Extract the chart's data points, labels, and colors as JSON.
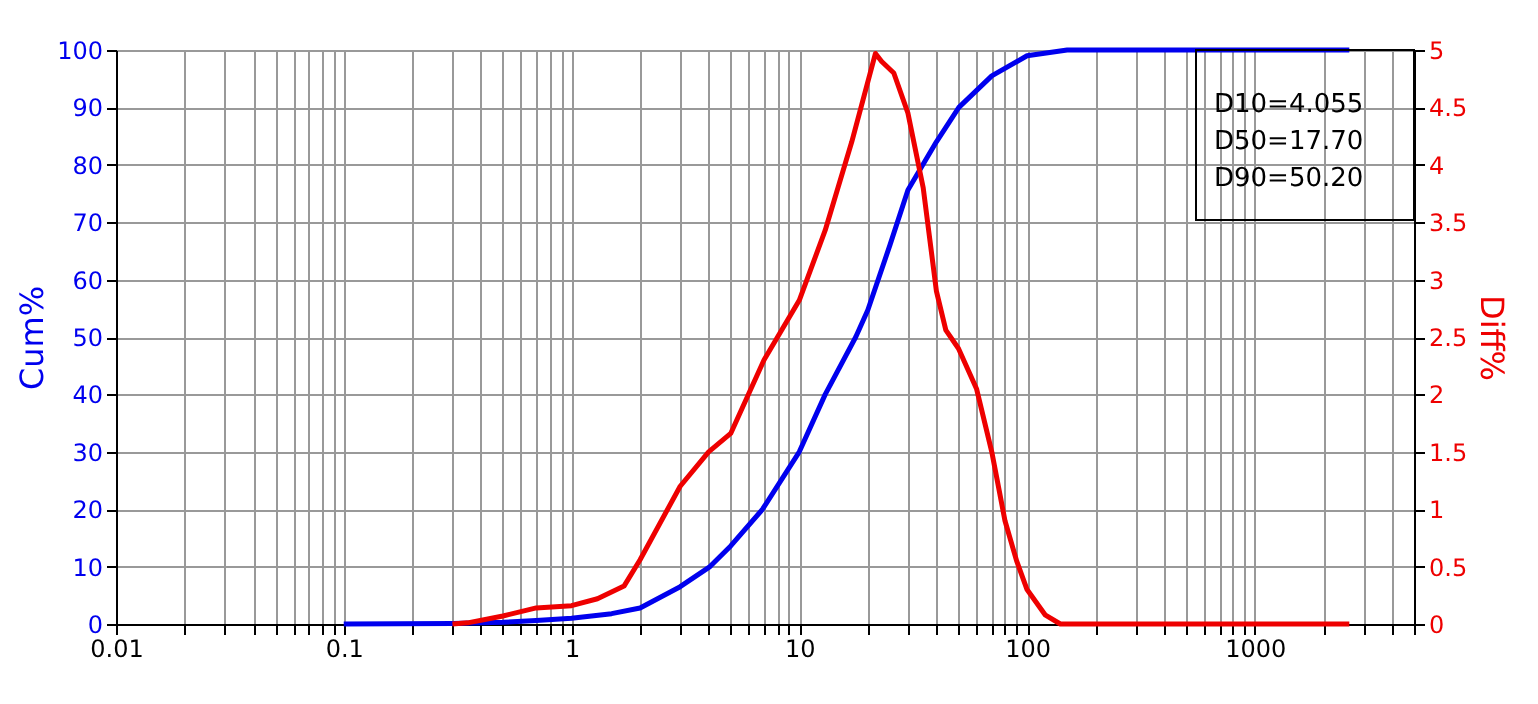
{
  "chart_data": {
    "type": "line",
    "ylabel": "Cum%",
    "y2label": "Diff%",
    "series": [
      {
        "name": null,
        "color": "#0000ee",
        "axis": "y",
        "x": [
          0.1,
          0.3,
          0.5,
          0.7,
          1,
          1.5,
          2,
          3,
          4.055,
          5,
          6.9,
          10,
          13,
          17.7,
          20,
          25,
          30,
          40,
          50.2,
          70,
          100,
          150,
          200,
          2600
        ],
        "values": [
          0,
          0.1,
          0.3,
          0.6,
          1,
          1.8,
          2.8,
          6.5,
          10,
          13.6,
          20,
          30,
          40,
          50,
          54.7,
          66,
          75.6,
          84,
          90,
          95.5,
          99,
          100,
          100,
          100
        ]
      },
      {
        "name": null,
        "color": "#ee0000",
        "axis": "y2",
        "x": [
          0.3,
          0.35,
          0.5,
          0.7,
          1,
          1.3,
          1.7,
          2,
          3,
          4,
          5,
          7,
          10,
          13,
          17,
          21.6,
          23,
          26,
          30,
          35,
          40,
          44,
          50,
          60,
          70,
          80,
          90,
          100,
          120,
          140,
          200,
          2600
        ],
        "values": [
          0,
          0.01,
          0.07,
          0.14,
          0.16,
          0.22,
          0.33,
          0.56,
          1.2,
          1.5,
          1.66,
          2.3,
          2.82,
          3.43,
          4.2,
          4.97,
          4.9,
          4.8,
          4.45,
          3.8,
          2.9,
          2.56,
          2.4,
          2.05,
          1.5,
          0.9,
          0.55,
          0.3,
          0.08,
          0,
          0,
          0
        ]
      }
    ],
    "log": "x",
    "xlim": [
      0.01,
      5000
    ],
    "xticks": [
      0.01,
      {
        "value": 0.02,
        "label": null
      },
      {
        "value": 0.03,
        "label": null
      },
      {
        "value": 0.04,
        "label": null
      },
      {
        "value": 0.05,
        "label": null
      },
      {
        "value": 0.06,
        "label": null
      },
      {
        "value": 0.07,
        "label": null
      },
      {
        "value": 0.08,
        "label": null
      },
      {
        "value": 0.09,
        "label": null
      },
      0.1,
      {
        "value": 0.2,
        "label": null
      },
      {
        "value": 0.3,
        "label": null
      },
      {
        "value": 0.4,
        "label": null
      },
      {
        "value": 0.5,
        "label": null
      },
      {
        "value": 0.6,
        "label": null
      },
      {
        "value": 0.7,
        "label": null
      },
      {
        "value": 0.8,
        "label": null
      },
      {
        "value": 0.9,
        "label": null
      },
      1,
      {
        "value": 2,
        "label": null
      },
      {
        "value": 3,
        "label": null
      },
      {
        "value": 4,
        "label": null
      },
      {
        "value": 5,
        "label": null
      },
      {
        "value": 6,
        "label": null
      },
      {
        "value": 7,
        "label": null
      },
      {
        "value": 8,
        "label": null
      },
      {
        "value": 9,
        "label": null
      },
      10,
      {
        "value": 20,
        "label": null
      },
      {
        "value": 30,
        "label": null
      },
      {
        "value": 40,
        "label": null
      },
      {
        "value": 50,
        "label": null
      },
      {
        "value": 60,
        "label": null
      },
      {
        "value": 70,
        "label": null
      },
      {
        "value": 80,
        "label": null
      },
      {
        "value": 90,
        "label": null
      },
      100,
      {
        "value": 200,
        "label": null
      },
      {
        "value": 300,
        "label": null
      },
      {
        "value": 400,
        "label": null
      },
      {
        "value": 500,
        "label": null
      },
      {
        "value": 600,
        "label": null
      },
      {
        "value": 700,
        "label": null
      },
      {
        "value": 800,
        "label": null
      },
      {
        "value": 900,
        "label": null
      },
      1000,
      {
        "value": 2000,
        "label": null
      },
      {
        "value": 3000,
        "label": null
      },
      {
        "value": 4000,
        "label": null
      },
      {
        "value": 5000,
        "label": null
      }
    ],
    "ylim": [
      0,
      100
    ],
    "yticks": [
      0,
      10,
      20,
      30,
      40,
      50,
      60,
      70,
      80,
      90,
      100
    ],
    "y2lim": [
      0,
      5
    ],
    "y2ticks": [
      0,
      0.5,
      1,
      1.5,
      2,
      2.5,
      3,
      3.5,
      4,
      4.5,
      5
    ],
    "grid": true,
    "marker": "none",
    "line_style": "solid",
    "annotations": [
      "D10=4.055",
      "D50=17.70",
      "D90=50.20"
    ]
  }
}
